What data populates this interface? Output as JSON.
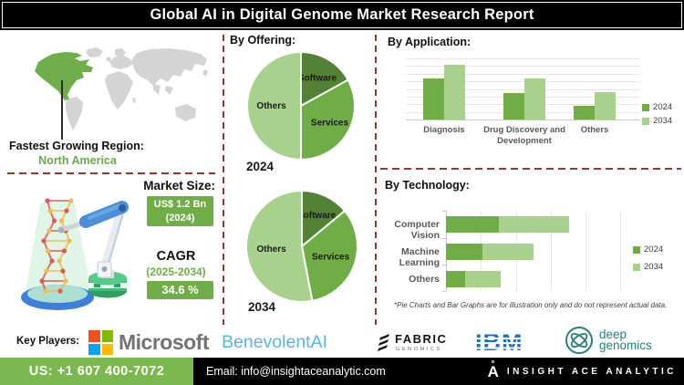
{
  "title": "Global AI in Digital Genome Market Research Report",
  "map_section": {
    "label": "Fastest Growing Region:",
    "region": "North America",
    "region_color": "#6fae4b"
  },
  "market_section": {
    "size_label": "Market Size:",
    "size_value": "US$ 1.2 Bn",
    "size_year": "(2024)",
    "cagr_label": "CAGR",
    "cagr_period": "(2025-2034)",
    "cagr_value": "34.6 %",
    "badge_color": "#6fae47"
  },
  "chart_data": [
    {
      "type": "pie",
      "title": "By Offering:",
      "year": "2024",
      "labels": [
        "Software",
        "Services",
        "Others"
      ],
      "values": [
        17,
        33,
        50
      ],
      "colors": [
        "#538135",
        "#70ad47",
        "#a9d18e"
      ],
      "legend_position": "none"
    },
    {
      "type": "pie",
      "title": "By Offering:",
      "year": "2034",
      "labels": [
        "Software",
        "Services",
        "Others"
      ],
      "values": [
        14,
        33,
        53
      ],
      "colors": [
        "#538135",
        "#70ad47",
        "#a9d18e"
      ],
      "legend_position": "none"
    },
    {
      "type": "bar",
      "title": "By Application:",
      "categories": [
        "Diagnosis",
        "Drug Discovery and Development",
        "Others"
      ],
      "series": [
        {
          "name": "2024",
          "color": "#70ad47",
          "values": [
            67,
            44,
            23
          ]
        },
        {
          "name": "2034",
          "color": "#a9d18e",
          "values": [
            90,
            67,
            45
          ]
        }
      ],
      "ylim": [
        0,
        100
      ],
      "grid": true,
      "legend_position": "right"
    },
    {
      "type": "bar-horizontal-stacked",
      "title": "By Technology:",
      "categories": [
        "Computer Vision",
        "Machine Learning",
        "Others"
      ],
      "series": [
        {
          "name": "2024",
          "color": "#70ad47",
          "values": [
            38,
            26,
            14
          ]
        },
        {
          "name": "2034",
          "color": "#a9d18e",
          "values": [
            50,
            37,
            25
          ]
        }
      ],
      "xlim": [
        0,
        100
      ],
      "grid": true,
      "legend_position": "right"
    }
  ],
  "note": "*Pie Charts and Bar Graphs are for illustration only and do not represent actual data.",
  "key_players": {
    "label": "Key Players:",
    "companies": [
      {
        "name": "Microsoft",
        "color": "#737373",
        "tile_colors": [
          "#f25022",
          "#7fba00",
          "#00a4ef",
          "#ffb900"
        ]
      },
      {
        "name": "BenevolentAI",
        "color": "#56b7e6"
      },
      {
        "name": "FABRIC",
        "sub": "GENOMICS",
        "color": "#141414"
      },
      {
        "name": "IBM",
        "color": "#1f70c1"
      },
      {
        "name": "deep genomics",
        "line1": "deep",
        "line2": "genomics",
        "color": "#2a8076"
      }
    ]
  },
  "footer": {
    "phone": "US: +1 607 400-7072",
    "email": "Email: info@insightaceanalytic.com",
    "brand": "INSIGHT ACE ANALYTIC",
    "brand_initial": "A",
    "phone_bg": "#7cb850"
  }
}
